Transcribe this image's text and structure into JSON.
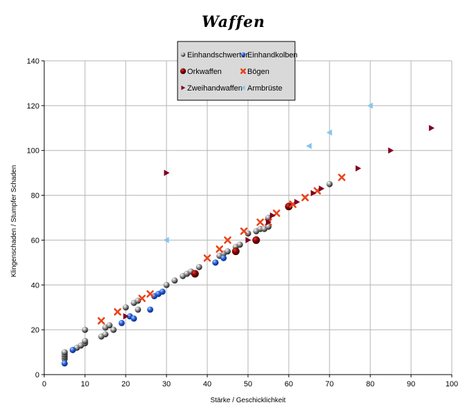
{
  "chart_data": {
    "type": "scatter",
    "title": "Waffen",
    "xlabel": "Stärke / Geschicklichkeit",
    "ylabel": "Klingenschaden / Stumpfer Schaden",
    "xlim": [
      0,
      100
    ],
    "ylim": [
      0,
      140
    ],
    "xticks": [
      0,
      10,
      20,
      30,
      40,
      50,
      60,
      70,
      80,
      90,
      100
    ],
    "yticks": [
      0,
      20,
      40,
      60,
      80,
      100,
      120,
      140
    ],
    "grid": true,
    "legend_position": "top-center",
    "series": [
      {
        "name": "Einhandschwerter",
        "marker": "sphere",
        "color": "#6e6e6e",
        "points": [
          [
            5,
            7
          ],
          [
            5,
            8
          ],
          [
            5,
            9
          ],
          [
            5,
            10
          ],
          [
            7,
            11
          ],
          [
            8,
            12
          ],
          [
            9,
            13
          ],
          [
            10,
            14
          ],
          [
            10,
            15
          ],
          [
            10,
            20
          ],
          [
            14,
            17
          ],
          [
            15,
            18
          ],
          [
            15,
            21
          ],
          [
            16,
            22
          ],
          [
            17,
            20
          ],
          [
            20,
            30
          ],
          [
            22,
            32
          ],
          [
            23,
            33
          ],
          [
            23,
            29
          ],
          [
            30,
            40
          ],
          [
            32,
            42
          ],
          [
            34,
            44
          ],
          [
            35,
            45
          ],
          [
            36,
            46
          ],
          [
            38,
            48
          ],
          [
            42,
            50
          ],
          [
            43,
            53
          ],
          [
            44,
            54
          ],
          [
            45,
            55
          ],
          [
            47,
            57
          ],
          [
            48,
            58
          ],
          [
            50,
            63
          ],
          [
            52,
            64
          ],
          [
            53,
            65
          ],
          [
            54,
            65
          ],
          [
            55,
            66
          ],
          [
            55,
            70
          ],
          [
            70,
            85
          ]
        ]
      },
      {
        "name": "Einhandkolben",
        "marker": "sphere",
        "color": "#1f5bd6",
        "points": [
          [
            5,
            5
          ],
          [
            7,
            11
          ],
          [
            19,
            23
          ],
          [
            21,
            26
          ],
          [
            22,
            25
          ],
          [
            26,
            29
          ],
          [
            27,
            35
          ],
          [
            28,
            36
          ],
          [
            29,
            37
          ],
          [
            42,
            50
          ],
          [
            44,
            52
          ]
        ]
      },
      {
        "name": "Orkwaffen",
        "marker": "circle",
        "color": "#8b0000",
        "points": [
          [
            37,
            45
          ],
          [
            47,
            55
          ],
          [
            52,
            60
          ],
          [
            60,
            75
          ]
        ]
      },
      {
        "name": "Bögen",
        "marker": "x",
        "color": "#e8441a",
        "points": [
          [
            14,
            24
          ],
          [
            18,
            28
          ],
          [
            24,
            34
          ],
          [
            26,
            36
          ],
          [
            40,
            52
          ],
          [
            43,
            56
          ],
          [
            45,
            60
          ],
          [
            49,
            64
          ],
          [
            53,
            68
          ],
          [
            55,
            68
          ],
          [
            57,
            72
          ],
          [
            61,
            76
          ],
          [
            64,
            79
          ],
          [
            67,
            82
          ],
          [
            73,
            88
          ]
        ]
      },
      {
        "name": "Zweihandwaffen",
        "marker": "triangle-right",
        "color": "#800020",
        "points": [
          [
            20,
            26
          ],
          [
            30,
            90
          ],
          [
            50,
            60
          ],
          [
            55,
            68
          ],
          [
            56,
            71
          ],
          [
            62,
            77
          ],
          [
            66,
            81
          ],
          [
            68,
            83
          ],
          [
            77,
            92
          ],
          [
            85,
            100
          ],
          [
            95,
            110
          ]
        ]
      },
      {
        "name": "Armbrüste",
        "marker": "triangle-left",
        "color": "#87c5ee",
        "points": [
          [
            30,
            60
          ],
          [
            65,
            102
          ],
          [
            70,
            108
          ],
          [
            80,
            120
          ]
        ]
      }
    ]
  }
}
